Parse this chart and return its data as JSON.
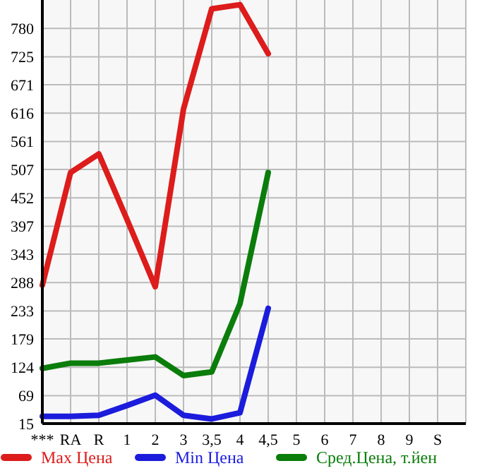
{
  "chart_data": {
    "type": "line",
    "categories": [
      "***",
      "RA",
      "R",
      "1",
      "2",
      "3",
      "3,5",
      "4",
      "4,5",
      "5",
      "6",
      "7",
      "8",
      "9",
      "S"
    ],
    "series": [
      {
        "name": "Max Цена",
        "color": "#dd1c1c",
        "values": [
          283,
          501,
          537,
          410,
          280,
          624,
          818,
          826,
          731,
          null,
          null,
          null,
          null,
          null,
          null
        ]
      },
      {
        "name": "Min Цена",
        "color": "#1c1cdd",
        "values": [
          29,
          29,
          31,
          50,
          70,
          31,
          24,
          36,
          238,
          null,
          null,
          null,
          null,
          null,
          null
        ]
      },
      {
        "name": "Сред.Цена, т.йен",
        "color": "#0a7d0a",
        "values": [
          122,
          132,
          132,
          138,
          144,
          108,
          115,
          247,
          501,
          null,
          null,
          null,
          null,
          null,
          null
        ]
      }
    ],
    "ylim": [
      15,
      835
    ],
    "yticks": [
      15,
      69,
      124,
      179,
      233,
      288,
      343,
      397,
      452,
      507,
      561,
      616,
      671,
      725,
      780
    ],
    "grid": true,
    "legend": "bottom",
    "marker": "none",
    "line_style": "solid"
  }
}
